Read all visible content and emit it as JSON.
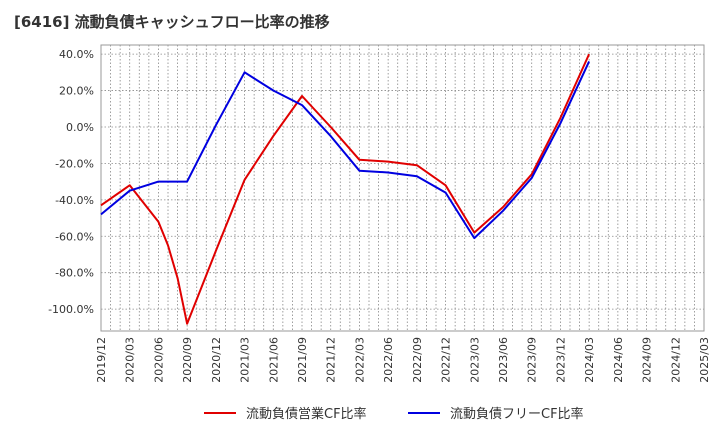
{
  "chart_data": {
    "type": "line",
    "title": "[6416]  流動負債キャッシュフロー比率の推移",
    "x": [
      "2019/12",
      "2020/03",
      "2020/06",
      "2020/09",
      "2020/12",
      "2021/03",
      "2021/06",
      "2021/09",
      "2021/12",
      "2022/03",
      "2022/06",
      "2022/09",
      "2022/12",
      "2023/03",
      "2023/06",
      "2023/09",
      "2023/12",
      "2024/03",
      "2024/06",
      "2024/09",
      "2024/12",
      "2025/03"
    ],
    "ylim": [
      -112,
      45
    ],
    "yticks": [
      40,
      20,
      0,
      -20,
      -40,
      -60,
      -80,
      -100
    ],
    "ytick_labels": [
      "40.0%",
      "20.0%",
      "0.0%",
      "-20.0%",
      "-40.0%",
      "-60.0%",
      "-80.0%",
      "-100.0%"
    ],
    "grid": true,
    "legend_position": "bottom",
    "series": [
      {
        "name": "流動負債営業CF比率",
        "color": "#e00000",
        "points": [
          [
            "2019/12",
            -43
          ],
          [
            "2020/03",
            -32
          ],
          [
            "2020/06",
            -52
          ],
          [
            "2020/07",
            -65
          ],
          [
            "2020/08",
            -83
          ],
          [
            "2020/09",
            -108
          ],
          [
            "2020/12",
            -68
          ],
          [
            "2021/03",
            -29
          ],
          [
            "2021/06",
            -5
          ],
          [
            "2021/09",
            17
          ],
          [
            "2021/12",
            0
          ],
          [
            "2022/03",
            -18
          ],
          [
            "2022/06",
            -19
          ],
          [
            "2022/09",
            -21
          ],
          [
            "2022/12",
            -32
          ],
          [
            "2023/03",
            -58
          ],
          [
            "2023/06",
            -44
          ],
          [
            "2023/09",
            -26
          ],
          [
            "2023/12",
            5
          ],
          [
            "2024/03",
            40
          ]
        ]
      },
      {
        "name": "流動負債フリーCF比率",
        "color": "#0000e0",
        "points": [
          [
            "2019/12",
            -48
          ],
          [
            "2020/03",
            -35
          ],
          [
            "2020/06",
            -30
          ],
          [
            "2020/09",
            -30
          ],
          [
            "2020/12",
            1
          ],
          [
            "2021/03",
            30
          ],
          [
            "2021/06",
            20
          ],
          [
            "2021/09",
            12
          ],
          [
            "2021/12",
            -5
          ],
          [
            "2022/03",
            -24
          ],
          [
            "2022/06",
            -25
          ],
          [
            "2022/09",
            -27
          ],
          [
            "2022/12",
            -36
          ],
          [
            "2023/03",
            -61
          ],
          [
            "2023/06",
            -46
          ],
          [
            "2023/09",
            -28
          ],
          [
            "2023/12",
            2
          ],
          [
            "2024/03",
            36
          ]
        ]
      }
    ]
  }
}
